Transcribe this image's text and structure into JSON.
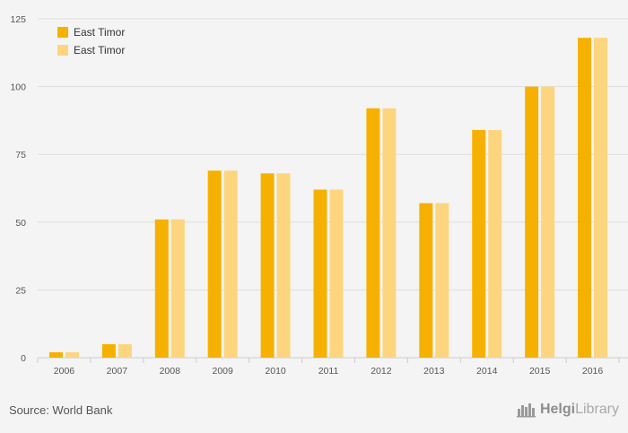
{
  "chart_data": {
    "type": "bar",
    "categories": [
      "2006",
      "2007",
      "2008",
      "2009",
      "2010",
      "2011",
      "2012",
      "2013",
      "2014",
      "2015",
      "2016"
    ],
    "series": [
      {
        "name": "East Timor",
        "color": "#f6b100",
        "values": [
          2,
          5,
          51,
          69,
          68,
          62,
          92,
          57,
          84,
          100,
          118
        ]
      },
      {
        "name": "East Timor",
        "color": "#fdd57e",
        "values": [
          2,
          5,
          51,
          69,
          68,
          62,
          92,
          57,
          84,
          100,
          118
        ]
      }
    ],
    "ylim": [
      0,
      125
    ],
    "yticks": [
      0,
      25,
      50,
      75,
      100,
      125
    ],
    "grid": true,
    "legend": "top-left"
  },
  "footer": {
    "source": "Source: World Bank",
    "brand_part1": "Helgi",
    "brand_part2": "Library",
    "brand_icon": "helgi-library-logo-icon"
  }
}
